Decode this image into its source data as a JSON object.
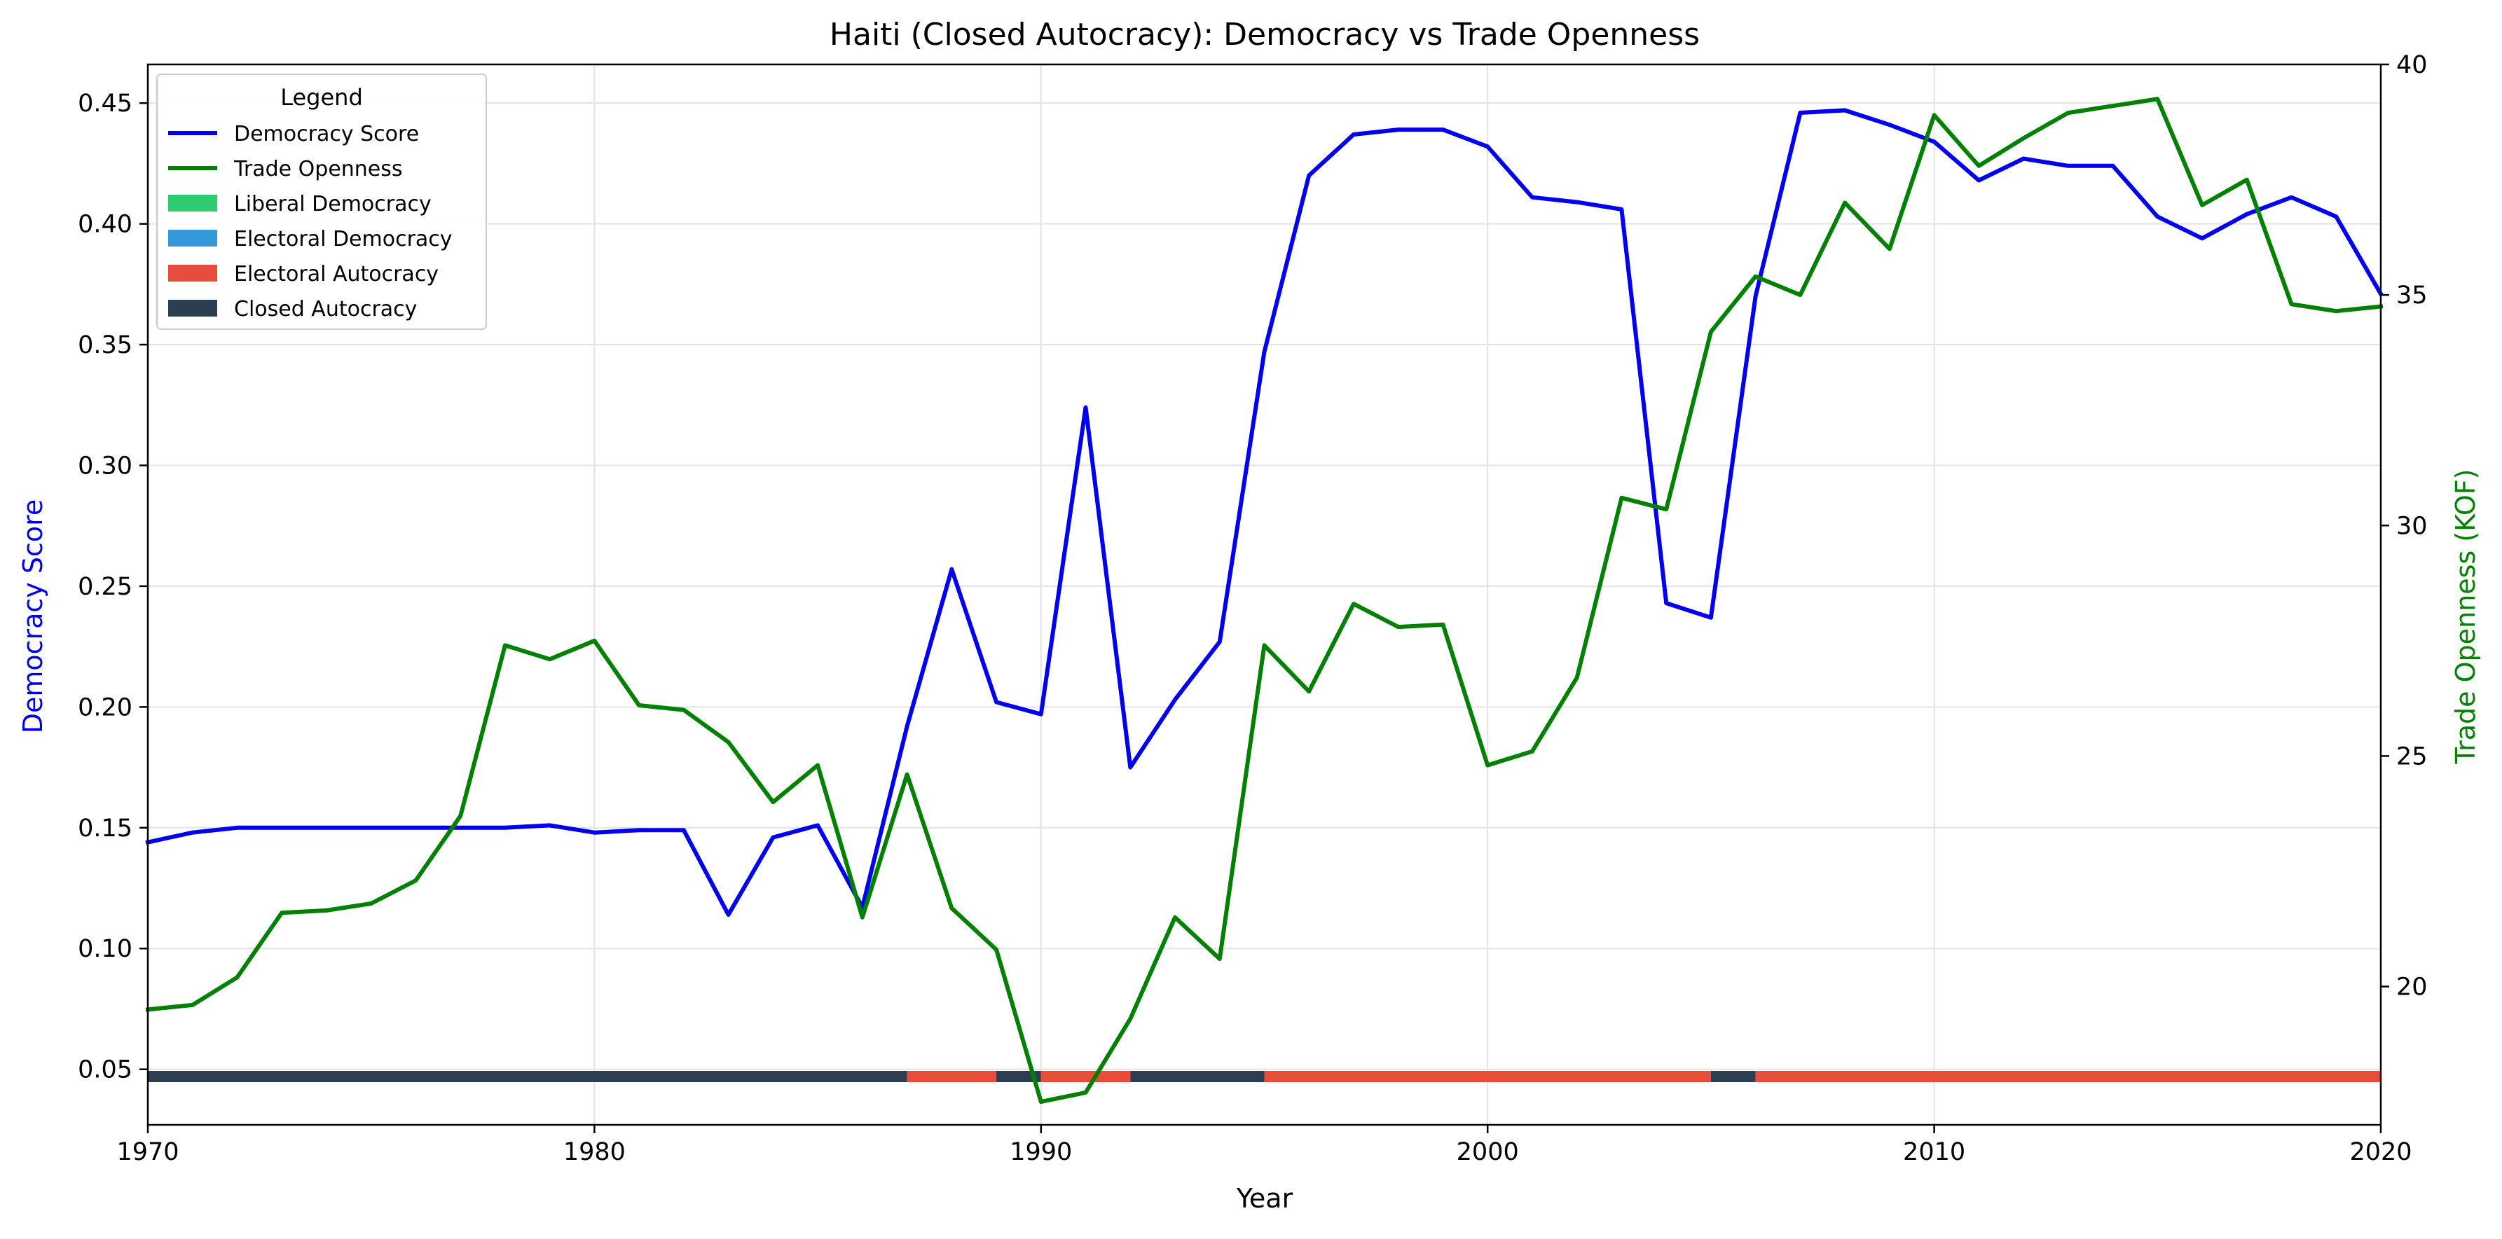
{
  "chart_data": {
    "type": "line",
    "title": "Haiti (Closed Autocracy): Democracy vs Trade Openness",
    "xlabel": "Year",
    "ylabel_left": "Democracy Score",
    "ylabel_right": "Trade Openness (KOF)",
    "xlim": [
      1970,
      2020
    ],
    "ylim_left": [
      0.027,
      0.466
    ],
    "ylim_right": [
      17.0,
      40.0
    ],
    "x_ticks": [
      1970,
      1980,
      1990,
      2000,
      2010,
      2020
    ],
    "y_ticks_left": [
      0.05,
      0.1,
      0.15,
      0.2,
      0.25,
      0.3,
      0.35,
      0.4,
      0.45
    ],
    "y_ticks_left_labels": [
      "0.05",
      "0.10",
      "0.15",
      "0.20",
      "0.25",
      "0.30",
      "0.35",
      "0.40",
      "0.45"
    ],
    "y_ticks_right": [
      20,
      25,
      30,
      35,
      40
    ],
    "y_ticks_right_labels": [
      "20",
      "25",
      "30",
      "35",
      "40"
    ],
    "grid": true,
    "legend": {
      "title": "Legend",
      "placement": "top-left",
      "entries": [
        {
          "label": "Democracy Score",
          "kind": "line",
          "color": "#0000ee"
        },
        {
          "label": "Trade Openness",
          "kind": "line",
          "color": "#008000"
        },
        {
          "label": "Liberal Democracy",
          "kind": "patch",
          "color": "#2ecc71"
        },
        {
          "label": "Electoral Democracy",
          "kind": "patch",
          "color": "#3498db"
        },
        {
          "label": "Electoral Autocracy",
          "kind": "patch",
          "color": "#e74c3c"
        },
        {
          "label": "Closed Autocracy",
          "kind": "patch",
          "color": "#2c3e50"
        }
      ]
    },
    "series": [
      {
        "name": "Democracy Score",
        "axis": "left",
        "color": "#0000ee",
        "x": [
          1970,
          1971,
          1972,
          1973,
          1974,
          1975,
          1976,
          1977,
          1978,
          1979,
          1980,
          1981,
          1982,
          1983,
          1984,
          1985,
          1986,
          1987,
          1988,
          1989,
          1990,
          1991,
          1992,
          1993,
          1994,
          1995,
          1996,
          1997,
          1998,
          1999,
          2000,
          2001,
          2002,
          2003,
          2004,
          2005,
          2006,
          2007,
          2008,
          2009,
          2010,
          2011,
          2012,
          2013,
          2014,
          2015,
          2016,
          2017,
          2018,
          2019,
          2020
        ],
        "values": [
          0.144,
          0.148,
          0.15,
          0.15,
          0.15,
          0.15,
          0.15,
          0.15,
          0.15,
          0.151,
          0.148,
          0.149,
          0.149,
          0.114,
          0.146,
          0.151,
          0.117,
          0.192,
          0.257,
          0.202,
          0.197,
          0.324,
          0.175,
          0.203,
          0.227,
          0.347,
          0.42,
          0.437,
          0.439,
          0.439,
          0.432,
          0.411,
          0.409,
          0.406,
          0.243,
          0.237,
          0.37,
          0.446,
          0.447,
          0.441,
          0.434,
          0.418,
          0.427,
          0.424,
          0.424,
          0.403,
          0.394,
          0.404,
          0.411,
          0.403,
          0.371
        ]
      },
      {
        "name": "Trade Openness",
        "axis": "right",
        "color": "#008000",
        "x": [
          1970,
          1971,
          1972,
          1973,
          1974,
          1975,
          1976,
          1977,
          1978,
          1979,
          1980,
          1981,
          1982,
          1983,
          1984,
          1985,
          1986,
          1987,
          1988,
          1989,
          1990,
          1991,
          1992,
          1993,
          1994,
          1995,
          1996,
          1997,
          1998,
          1999,
          2000,
          2001,
          2002,
          2003,
          2004,
          2005,
          2006,
          2007,
          2008,
          2009,
          2010,
          2011,
          2012,
          2013,
          2014,
          2015,
          2016,
          2017,
          2018,
          2019,
          2020
        ],
        "values": [
          19.5,
          19.6,
          20.2,
          21.6,
          21.65,
          21.8,
          22.3,
          23.7,
          27.4,
          27.1,
          27.5,
          26.1,
          26.0,
          25.3,
          24.0,
          24.8,
          21.5,
          24.6,
          21.7,
          20.8,
          17.5,
          17.7,
          19.3,
          21.5,
          20.6,
          27.4,
          26.4,
          28.3,
          27.8,
          27.85,
          24.8,
          25.1,
          26.7,
          30.6,
          30.35,
          34.2,
          35.4,
          35.0,
          37.0,
          36.0,
          38.9,
          37.8,
          38.4,
          38.95,
          39.1,
          39.25,
          36.95,
          37.5,
          34.8,
          34.65,
          34.75
        ]
      }
    ],
    "regime_band": {
      "value": 0.047,
      "segments": [
        {
          "start": 1970,
          "end": 1987,
          "regime": "Closed Autocracy",
          "color": "#2c3e50"
        },
        {
          "start": 1987,
          "end": 1989,
          "regime": "Electoral Autocracy",
          "color": "#e74c3c"
        },
        {
          "start": 1989,
          "end": 1990,
          "regime": "Closed Autocracy",
          "color": "#2c3e50"
        },
        {
          "start": 1990,
          "end": 1992,
          "regime": "Electoral Autocracy",
          "color": "#e74c3c"
        },
        {
          "start": 1992,
          "end": 1995,
          "regime": "Closed Autocracy",
          "color": "#2c3e50"
        },
        {
          "start": 1995,
          "end": 2005,
          "regime": "Electoral Autocracy",
          "color": "#e74c3c"
        },
        {
          "start": 2005,
          "end": 2006,
          "regime": "Closed Autocracy",
          "color": "#2c3e50"
        },
        {
          "start": 2006,
          "end": 2020,
          "regime": "Electoral Autocracy",
          "color": "#e74c3c"
        }
      ]
    }
  }
}
